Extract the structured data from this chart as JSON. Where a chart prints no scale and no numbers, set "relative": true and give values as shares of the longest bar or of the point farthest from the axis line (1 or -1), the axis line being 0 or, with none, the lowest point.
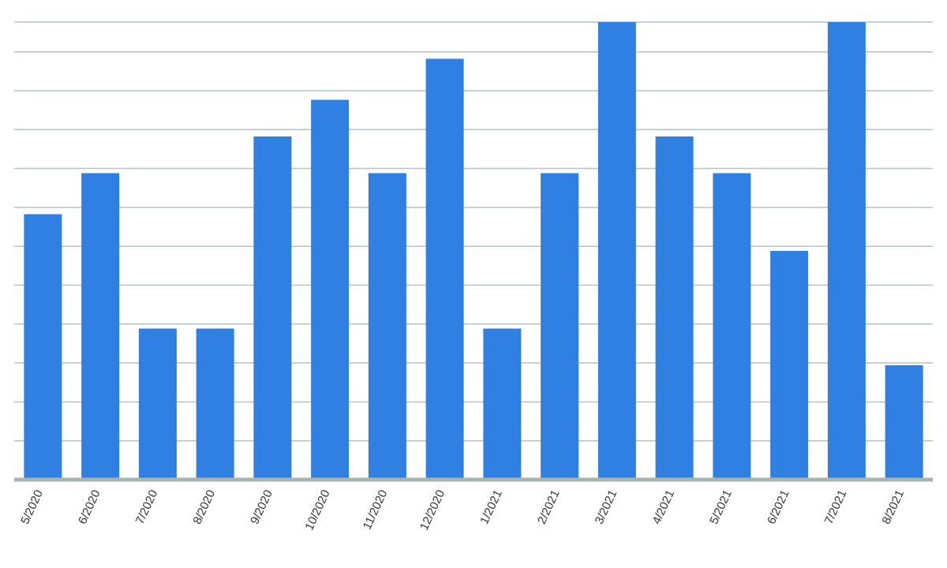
{
  "chart_data": {
    "type": "bar",
    "relative": true,
    "grid": "y",
    "color": "#2f80e2",
    "categories": [
      "5/2020",
      "6/2020",
      "7/2020",
      "8/2020",
      "9/2020",
      "10/2020",
      "11/2020",
      "12/2020",
      "1/2021",
      "2/2021",
      "3/2021",
      "4/2021",
      "5/2021",
      "6/2021",
      "7/2021",
      "8/2021"
    ],
    "values": [
      0.58,
      0.67,
      0.33,
      0.33,
      0.75,
      0.83,
      0.67,
      0.92,
      0.33,
      0.67,
      1,
      0.75,
      0.67,
      0.5,
      1,
      0.25
    ]
  }
}
